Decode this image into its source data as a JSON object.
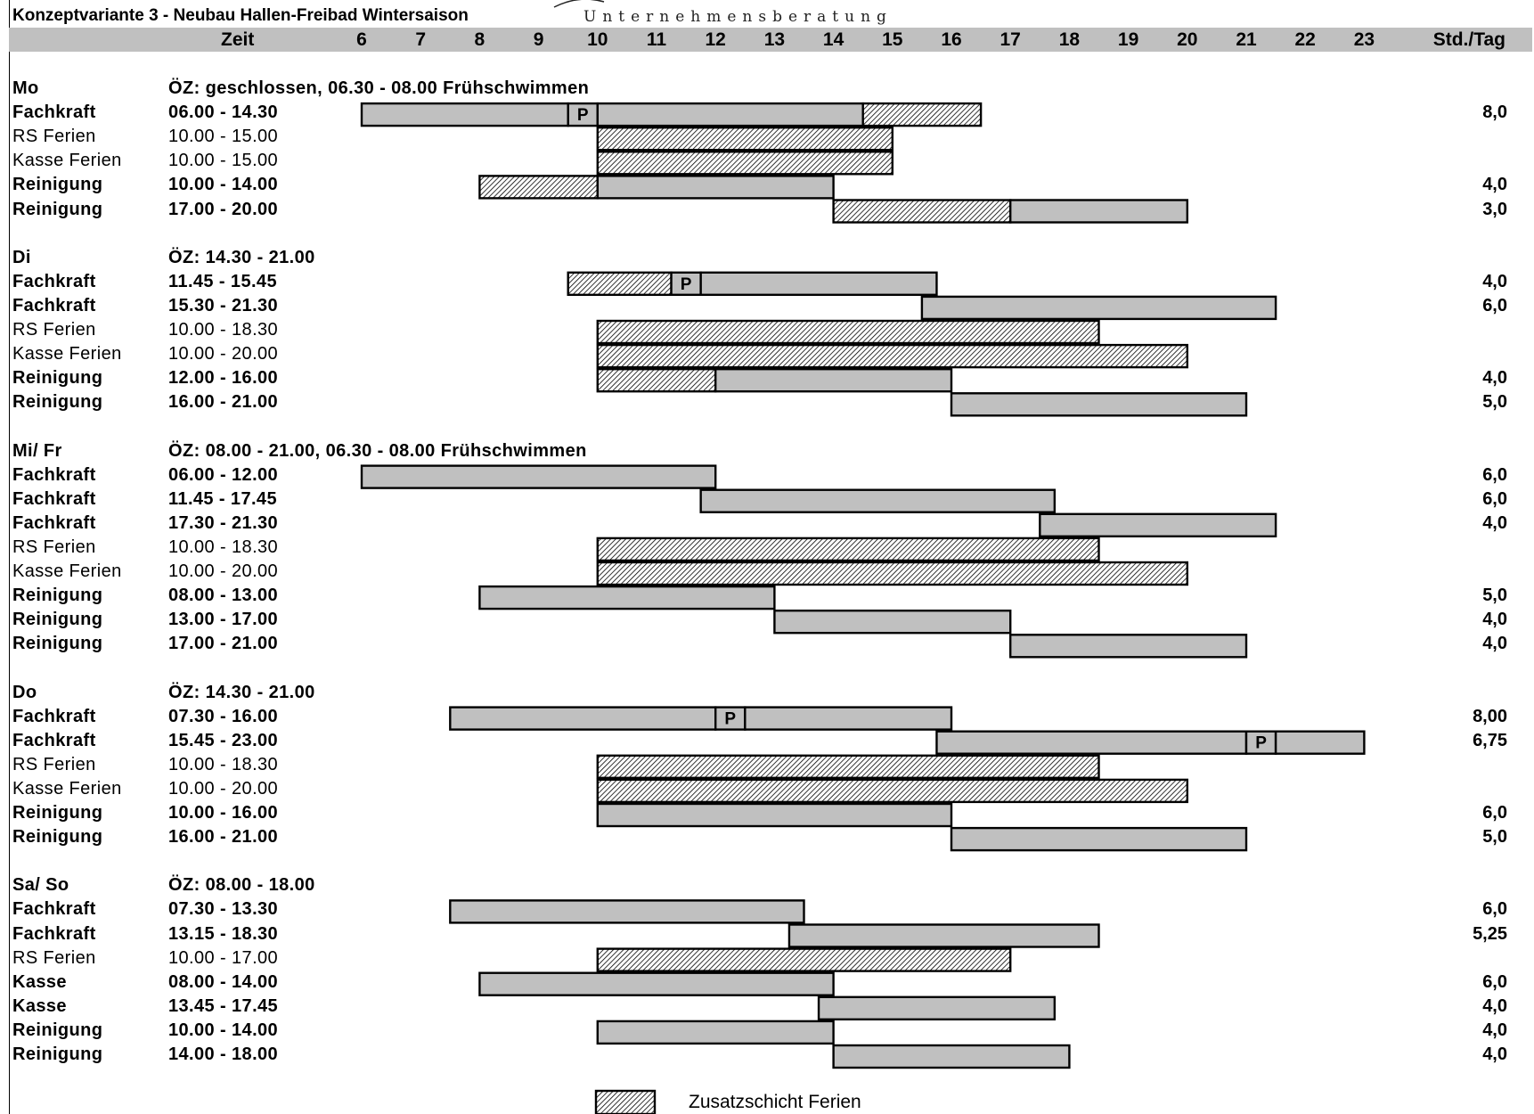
{
  "title": "Konzeptvariante 3 - Neubau Hallen-Freibad Wintersaison",
  "brand_text": "Unternehmensberatung",
  "header": {
    "zeit_label": "Zeit",
    "hours_label": "Std./Tag"
  },
  "legend": {
    "label": "Zusatzschicht Ferien"
  },
  "chart_data": {
    "type": "gantt",
    "title": "Konzeptvariante 3 - Neubau Hallen-Freibad Wintersaison",
    "x_ticks": [
      "6",
      "7",
      "8",
      "9",
      "10",
      "11",
      "12",
      "13",
      "14",
      "15",
      "16",
      "17",
      "18",
      "19",
      "20",
      "21",
      "22",
      "23"
    ],
    "x_range": [
      6,
      23
    ],
    "sections": [
      {
        "day": "Mo",
        "note": "ÖZ: geschlossen, 06.30 - 08.00 Frühschwimmen",
        "rows": [
          {
            "role": "Fachkraft",
            "time": "06.00 - 14.30",
            "hours": "8,0",
            "bold": true,
            "segments": [
              {
                "start": 6,
                "end": 9.5,
                "fill": "solid"
              },
              {
                "start": 9.5,
                "end": 10,
                "fill": "pause",
                "label": "P"
              },
              {
                "start": 10,
                "end": 14.5,
                "fill": "solid"
              },
              {
                "start": 14.5,
                "end": 16.5,
                "fill": "hatch"
              }
            ]
          },
          {
            "role": "RS Ferien",
            "time": "10.00 - 15.00",
            "hours": "",
            "bold": false,
            "segments": [
              {
                "start": 10,
                "end": 15,
                "fill": "hatch"
              }
            ]
          },
          {
            "role": "Kasse Ferien",
            "time": "10.00 - 15.00",
            "hours": "",
            "bold": false,
            "segments": [
              {
                "start": 10,
                "end": 15,
                "fill": "hatch"
              }
            ]
          },
          {
            "role": "Reinigung",
            "time": "10.00 - 14.00",
            "hours": "4,0",
            "bold": true,
            "segments": [
              {
                "start": 8,
                "end": 10,
                "fill": "hatch"
              },
              {
                "start": 10,
                "end": 14,
                "fill": "solid"
              }
            ]
          },
          {
            "role": "Reinigung",
            "time": "17.00 - 20.00",
            "hours": "3,0",
            "bold": true,
            "segments": [
              {
                "start": 14,
                "end": 17,
                "fill": "hatch"
              },
              {
                "start": 17,
                "end": 20,
                "fill": "solid"
              }
            ]
          }
        ]
      },
      {
        "day": "Di",
        "note": "ÖZ: 14.30 - 21.00",
        "rows": [
          {
            "role": "Fachkraft",
            "time": "11.45 - 15.45",
            "hours": "4,0",
            "bold": true,
            "segments": [
              {
                "start": 9.5,
                "end": 11.25,
                "fill": "hatch"
              },
              {
                "start": 11.25,
                "end": 11.75,
                "fill": "pause",
                "label": "P"
              },
              {
                "start": 11.75,
                "end": 15.75,
                "fill": "solid"
              }
            ]
          },
          {
            "role": "Fachkraft",
            "time": "15.30 - 21.30",
            "hours": "6,0",
            "bold": true,
            "segments": [
              {
                "start": 15.5,
                "end": 21.5,
                "fill": "solid"
              }
            ]
          },
          {
            "role": "RS Ferien",
            "time": "10.00 - 18.30",
            "hours": "",
            "bold": false,
            "segments": [
              {
                "start": 10,
                "end": 18.5,
                "fill": "hatch"
              }
            ]
          },
          {
            "role": "Kasse Ferien",
            "time": "10.00 - 20.00",
            "hours": "",
            "bold": false,
            "segments": [
              {
                "start": 10,
                "end": 20,
                "fill": "hatch"
              }
            ]
          },
          {
            "role": "Reinigung",
            "time": "12.00 - 16.00",
            "hours": "4,0",
            "bold": true,
            "segments": [
              {
                "start": 10,
                "end": 12,
                "fill": "hatch"
              },
              {
                "start": 12,
                "end": 16,
                "fill": "solid"
              }
            ]
          },
          {
            "role": "Reinigung",
            "time": "16.00 - 21.00",
            "hours": "5,0",
            "bold": true,
            "segments": [
              {
                "start": 16,
                "end": 21,
                "fill": "solid"
              }
            ]
          }
        ]
      },
      {
        "day": "Mi/ Fr",
        "note": "ÖZ: 08.00 - 21.00, 06.30 - 08.00 Frühschwimmen",
        "rows": [
          {
            "role": "Fachkraft",
            "time": "06.00 - 12.00",
            "hours": "6,0",
            "bold": true,
            "segments": [
              {
                "start": 6,
                "end": 12,
                "fill": "solid"
              }
            ]
          },
          {
            "role": "Fachkraft",
            "time": "11.45 - 17.45",
            "hours": "6,0",
            "bold": true,
            "segments": [
              {
                "start": 11.75,
                "end": 17.75,
                "fill": "solid"
              }
            ]
          },
          {
            "role": "Fachkraft",
            "time": "17.30 - 21.30",
            "hours": "4,0",
            "bold": true,
            "segments": [
              {
                "start": 17.5,
                "end": 21.5,
                "fill": "solid"
              }
            ]
          },
          {
            "role": "RS Ferien",
            "time": "10.00 - 18.30",
            "hours": "",
            "bold": false,
            "segments": [
              {
                "start": 10,
                "end": 18.5,
                "fill": "hatch"
              }
            ]
          },
          {
            "role": "Kasse Ferien",
            "time": "10.00 - 20.00",
            "hours": "",
            "bold": false,
            "segments": [
              {
                "start": 10,
                "end": 20,
                "fill": "hatch"
              }
            ]
          },
          {
            "role": "Reinigung",
            "time": "08.00 - 13.00",
            "hours": "5,0",
            "bold": true,
            "segments": [
              {
                "start": 8,
                "end": 13,
                "fill": "solid"
              }
            ]
          },
          {
            "role": "Reinigung",
            "time": "13.00 - 17.00",
            "hours": "4,0",
            "bold": true,
            "segments": [
              {
                "start": 13,
                "end": 17,
                "fill": "solid"
              }
            ]
          },
          {
            "role": "Reinigung",
            "time": "17.00 - 21.00",
            "hours": "4,0",
            "bold": true,
            "segments": [
              {
                "start": 17,
                "end": 21,
                "fill": "solid"
              }
            ]
          }
        ]
      },
      {
        "day": "Do",
        "note": "ÖZ: 14.30 - 21.00",
        "rows": [
          {
            "role": "Fachkraft",
            "time": "07.30 - 16.00",
            "hours": "8,00",
            "bold": true,
            "segments": [
              {
                "start": 7.5,
                "end": 12,
                "fill": "solid"
              },
              {
                "start": 12,
                "end": 12.5,
                "fill": "pause",
                "label": "P"
              },
              {
                "start": 12.5,
                "end": 16,
                "fill": "solid"
              }
            ]
          },
          {
            "role": "Fachkraft",
            "time": "15.45 - 23.00",
            "hours": "6,75",
            "bold": true,
            "segments": [
              {
                "start": 15.75,
                "end": 21,
                "fill": "solid"
              },
              {
                "start": 21,
                "end": 21.5,
                "fill": "pause",
                "label": "P"
              },
              {
                "start": 21.5,
                "end": 23,
                "fill": "solid"
              }
            ]
          },
          {
            "role": "RS Ferien",
            "time": "10.00 - 18.30",
            "hours": "",
            "bold": false,
            "segments": [
              {
                "start": 10,
                "end": 18.5,
                "fill": "hatch"
              }
            ]
          },
          {
            "role": "Kasse Ferien",
            "time": "10.00 - 20.00",
            "hours": "",
            "bold": false,
            "segments": [
              {
                "start": 10,
                "end": 20,
                "fill": "hatch"
              }
            ]
          },
          {
            "role": "Reinigung",
            "time": "10.00 - 16.00",
            "hours": "6,0",
            "bold": true,
            "segments": [
              {
                "start": 10,
                "end": 16,
                "fill": "solid"
              }
            ]
          },
          {
            "role": "Reinigung",
            "time": "16.00 - 21.00",
            "hours": "5,0",
            "bold": true,
            "segments": [
              {
                "start": 16,
                "end": 21,
                "fill": "solid"
              }
            ]
          }
        ]
      },
      {
        "day": "Sa/ So",
        "note": "ÖZ: 08.00 - 18.00",
        "rows": [
          {
            "role": "Fachkraft",
            "time": "07.30 - 13.30",
            "hours": "6,0",
            "bold": true,
            "segments": [
              {
                "start": 7.5,
                "end": 13.5,
                "fill": "solid"
              }
            ]
          },
          {
            "role": "Fachkraft",
            "time": "13.15 - 18.30",
            "hours": "5,25",
            "bold": true,
            "segments": [
              {
                "start": 13.25,
                "end": 18.5,
                "fill": "solid"
              }
            ]
          },
          {
            "role": "RS Ferien",
            "time": "10.00 - 17.00",
            "hours": "",
            "bold": false,
            "segments": [
              {
                "start": 10,
                "end": 17,
                "fill": "hatch"
              }
            ]
          },
          {
            "role": "Kasse",
            "time": "08.00 - 14.00",
            "hours": "6,0",
            "bold": true,
            "segments": [
              {
                "start": 8,
                "end": 14,
                "fill": "solid"
              }
            ]
          },
          {
            "role": "Kasse",
            "time": "13.45 - 17.45",
            "hours": "4,0",
            "bold": true,
            "segments": [
              {
                "start": 13.75,
                "end": 17.75,
                "fill": "solid"
              }
            ]
          },
          {
            "role": "Reinigung",
            "time": "10.00 - 14.00",
            "hours": "4,0",
            "bold": true,
            "segments": [
              {
                "start": 10,
                "end": 14,
                "fill": "solid"
              }
            ]
          },
          {
            "role": "Reinigung",
            "time": "14.00 - 18.00",
            "hours": "4,0",
            "bold": true,
            "segments": [
              {
                "start": 14,
                "end": 18,
                "fill": "solid"
              }
            ]
          }
        ]
      }
    ],
    "colors": {
      "bar_fill": "#c0c0c0",
      "header_fill": "#c0c0c0",
      "hatch_line": "#000000",
      "outline": "#000000"
    }
  }
}
